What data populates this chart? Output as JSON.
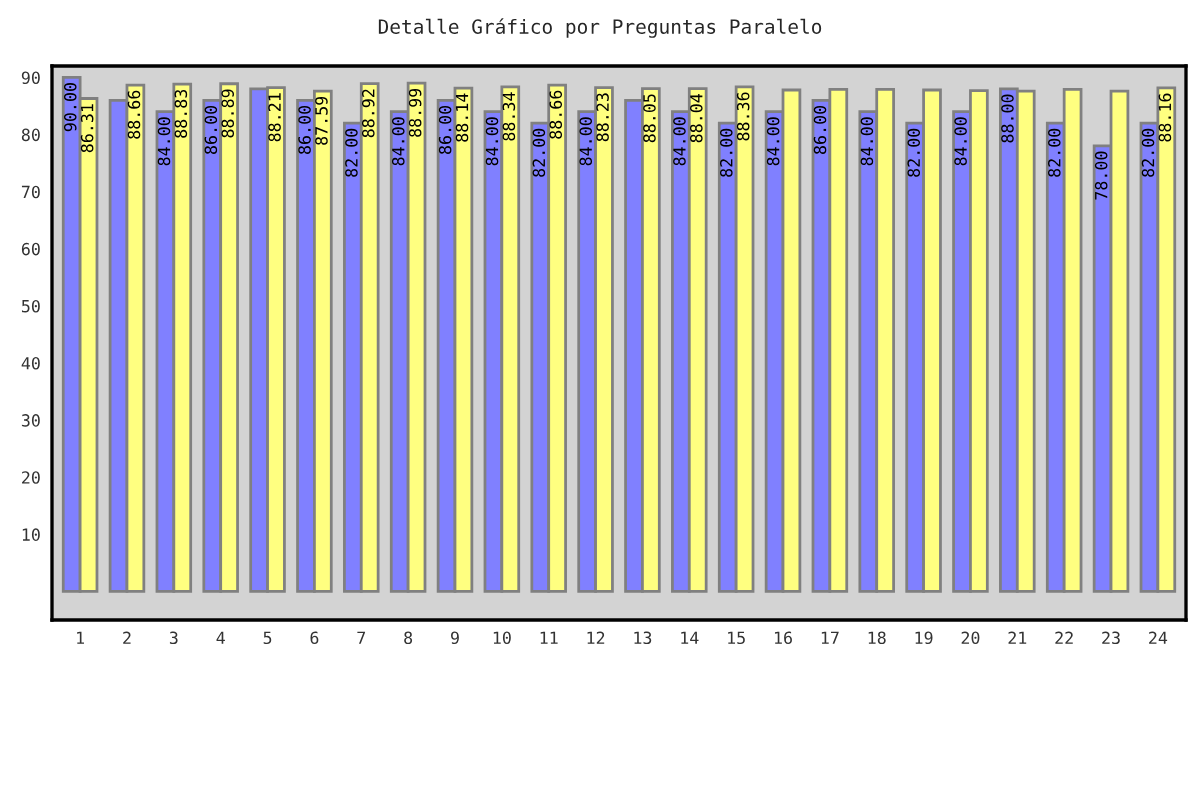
{
  "chart_data": {
    "type": "bar",
    "title": "Detalle Gráfico por Preguntas Paralelo",
    "categories": [
      "1",
      "2",
      "3",
      "4",
      "5",
      "6",
      "7",
      "8",
      "9",
      "10",
      "11",
      "12",
      "13",
      "14",
      "15",
      "16",
      "17",
      "18",
      "19",
      "20",
      "21",
      "22",
      "23",
      "24"
    ],
    "series": [
      {
        "color": "#8080ff",
        "values": [
          90,
          86,
          84,
          86,
          88,
          86,
          82,
          84,
          86,
          84,
          82,
          84,
          86,
          84,
          82,
          84,
          86,
          84,
          82,
          84,
          88,
          82,
          78,
          82
        ],
        "value_labels": [
          "90.00",
          null,
          "84.00",
          "86.00",
          null,
          "86.00",
          "82.00",
          "84.00",
          "86.00",
          "84.00",
          "82.00",
          "84.00",
          null,
          "84.00",
          "82.00",
          "84.00",
          "86.00",
          "84.00",
          "82.00",
          "84.00",
          "88.00",
          "82.00",
          "78.00",
          "82.00"
        ]
      },
      {
        "color": "#ffff80",
        "values": [
          86.31,
          88.66,
          88.83,
          88.89,
          88.21,
          87.59,
          88.92,
          88.99,
          88.14,
          88.34,
          88.66,
          88.23,
          88.05,
          88.04,
          88.36,
          87.8,
          87.9,
          87.9,
          87.8,
          87.7,
          87.6,
          87.9,
          87.6,
          88.16
        ],
        "value_labels": [
          "86.31",
          "88.66",
          "88.83",
          "88.89",
          "88.21",
          "87.59",
          "88.92",
          "88.99",
          "88.14",
          "88.34",
          "88.66",
          "88.23",
          "88.05",
          "88.04",
          "88.36",
          null,
          null,
          null,
          null,
          null,
          null,
          null,
          null,
          "88.16"
        ]
      }
    ],
    "ylim": [
      -5,
      92
    ],
    "yticks": [
      10,
      20,
      30,
      40,
      50,
      60,
      70,
      80,
      90
    ],
    "grid": false,
    "legend": false
  }
}
